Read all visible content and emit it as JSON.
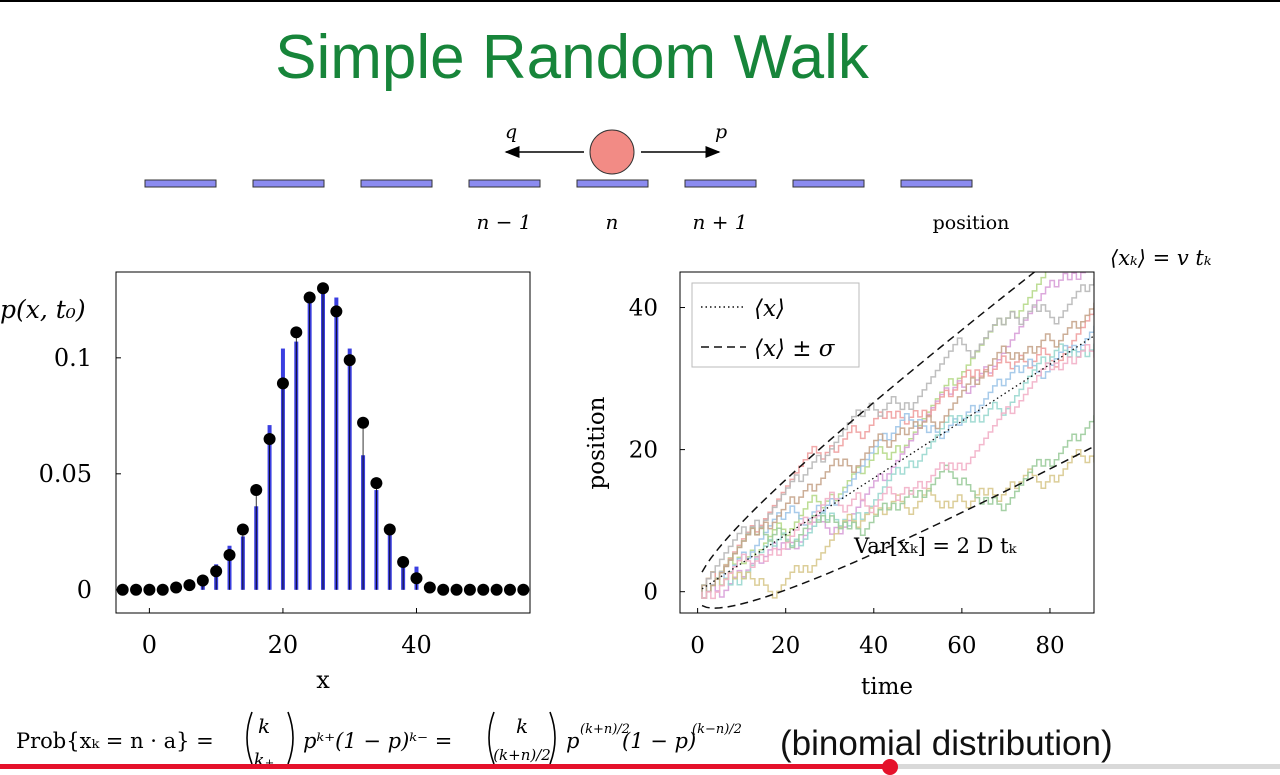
{
  "slide": {
    "title": "Simple Random Walk",
    "binomial_note": "(binomial distribution)"
  },
  "walk_diagram": {
    "left_label": "q",
    "right_label": "p",
    "site_labels": [
      "n − 1",
      "n",
      "n + 1"
    ],
    "axis_label": "position",
    "segment_color": "#8b8bf0",
    "particle_color": "#f28b85"
  },
  "chart_data": [
    {
      "type": "bar",
      "ylabel": "p(x, t₀)",
      "xlabel": "x",
      "xlim": [
        -5,
        57
      ],
      "ylim": [
        -0.01,
        0.137
      ],
      "xticks": [
        0,
        20,
        40
      ],
      "yticks": [
        0,
        0.05,
        0.1
      ],
      "ytick_labels": [
        "0",
        "0.05",
        "0.1"
      ],
      "bar_color": "#3b3fe0",
      "bar_x": [
        0,
        2,
        4,
        6,
        8,
        10,
        12,
        14,
        16,
        18,
        20,
        22,
        24,
        26,
        28,
        30,
        32,
        34,
        36,
        38,
        40,
        42
      ],
      "bar_values": [
        0,
        0,
        0,
        0.001,
        0.004,
        0.011,
        0.019,
        0.023,
        0.036,
        0.071,
        0.104,
        0.107,
        0.126,
        0.128,
        0.126,
        0.104,
        0.058,
        0.043,
        0.024,
        0.013,
        0.01,
        0.001
      ],
      "points_x": [
        -4,
        -2,
        0,
        2,
        4,
        6,
        8,
        10,
        12,
        14,
        16,
        18,
        20,
        22,
        24,
        26,
        28,
        30,
        32,
        34,
        36,
        38,
        40,
        42,
        44,
        46,
        48,
        50,
        52,
        54,
        56
      ],
      "points_y": [
        0,
        0,
        0,
        0,
        0.001,
        0.002,
        0.004,
        0.008,
        0.015,
        0.026,
        0.043,
        0.065,
        0.089,
        0.111,
        0.126,
        0.13,
        0.12,
        0.099,
        0.072,
        0.046,
        0.026,
        0.012,
        0.005,
        0.001,
        0,
        0,
        0,
        0,
        0,
        0,
        0
      ]
    },
    {
      "type": "line",
      "xlabel": "time",
      "ylabel": "position",
      "xlim": [
        -4,
        90
      ],
      "ylim": [
        -3,
        45
      ],
      "xticks": [
        0,
        20,
        40,
        60,
        80
      ],
      "yticks": [
        0,
        20,
        40
      ],
      "velocity": 0.4,
      "diffusion": 0.25,
      "legend": {
        "position": "top-left",
        "entries": [
          {
            "label": "⟨x⟩",
            "style": "dotted"
          },
          {
            "label": "⟨x⟩ ± σ",
            "style": "dashed"
          }
        ]
      },
      "annotation_var": "Var[xₖ] = 2 D tₖ",
      "annotation_mean": "⟨xₖ⟩ = v tₖ",
      "trajectory_colors": [
        "#b6d98a",
        "#d8a0d8",
        "#f0a0a0",
        "#9ec5e8",
        "#b8b8b8",
        "#9ad8cf",
        "#d8c98e",
        "#9ccc9c",
        "#c7a58c",
        "#f2b0c8"
      ],
      "trajectory_drifts": [
        0.58,
        0.55,
        0.52,
        0.48,
        0.45,
        0.44,
        0.41,
        0.38,
        0.36,
        0.33
      ]
    }
  ],
  "formula": {
    "lhs": "Prob{xₖ = n · a} =",
    "binom1_top": "k",
    "binom1_bottom": "k₊",
    "term1": "pᵏ⁺(1 − p)ᵏ⁻ =",
    "binom2_top": "k",
    "binom2_bottom": "(k+n)/2",
    "term2_base": "p",
    "term2_exp": "(k+n)/2",
    "term2_mid": "(1 − p)",
    "term2_exp2": "(k−n)/2"
  },
  "video": {
    "progress": 0.695
  }
}
